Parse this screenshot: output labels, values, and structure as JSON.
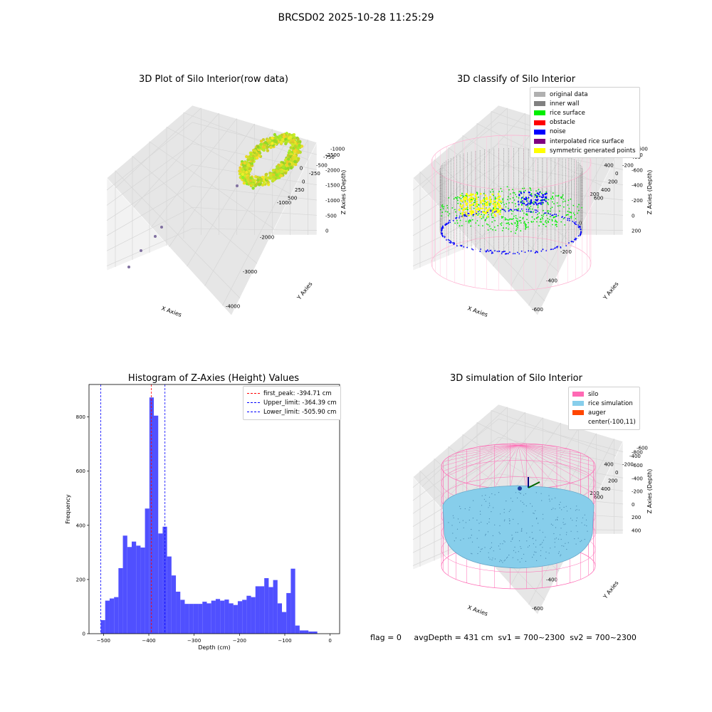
{
  "suptitle": "BRCSD02 2025-10-28 11:25:29",
  "status_text": "flag = 0     avgDepth = 431 cm  sv1 = 700~2300  sv2 = 700~2300",
  "colors": {
    "wall_gray": "#808080",
    "original_gray": "#b0b0b0",
    "rice_green": "#00ee00",
    "obstacle_red": "#ff0000",
    "noise_blue": "#0000ff",
    "interpolated_purple": "#800080",
    "symmetric_yellow": "#ffff00",
    "silo_pink": "#ff69b4",
    "rice_sim_blue": "#87ceeb",
    "auger_orange": "#ff4500",
    "hist_blue": "#5050ff"
  },
  "chart_data": [
    {
      "type": "scatter",
      "title": "3D Plot of Silo Interior(row data)",
      "xlabel": "X Axies",
      "ylabel": "Y Axies",
      "zlabel": "Z Axies (Depth)",
      "x_ticks": [
        "-4000",
        "-3000",
        "-2000",
        "-1000",
        "0"
      ],
      "y_ticks": [
        "-1000",
        "-750",
        "-500",
        "-250",
        "0",
        "250",
        "500"
      ],
      "z_ticks": [
        "0",
        "-500",
        "-1000",
        "-1500",
        "-2000",
        "-2500"
      ],
      "colormap": "green-to-yellow by depth"
    },
    {
      "type": "scatter",
      "title": "3D classify of Silo Interior",
      "xlabel": "X Axies",
      "ylabel": "Y Axies",
      "zlabel": "Z Axies (Depth)",
      "x_ticks": [
        "-600",
        "-400",
        "-200",
        "0",
        "200",
        "400"
      ],
      "y_ticks": [
        "-600",
        "-400",
        "-200",
        "0",
        "200",
        "400",
        "600"
      ],
      "z_ticks": [
        "200",
        "0",
        "-200",
        "-400",
        "-600",
        "-800"
      ],
      "legend": [
        {
          "label": "original data",
          "color": "#b0b0b0"
        },
        {
          "label": "inner wall",
          "color": "#808080"
        },
        {
          "label": "rice surface",
          "color": "#00ee00"
        },
        {
          "label": "obstacle",
          "color": "#ff0000"
        },
        {
          "label": "noise",
          "color": "#0000ff"
        },
        {
          "label": "interpolated rice surface",
          "color": "#800080"
        },
        {
          "label": "symmetric generated points",
          "color": "#ffff00"
        }
      ],
      "legend_position": "top-right"
    },
    {
      "type": "bar",
      "title": "Histogram of Z-Axies (Height) Values",
      "xlabel": "Depth (cm)",
      "ylabel": "Frequency",
      "xlim": [
        -532,
        21
      ],
      "ylim": [
        0,
        920
      ],
      "x_ticks": [
        -500,
        -400,
        -300,
        -200,
        -100,
        0
      ],
      "y_ticks": [
        0,
        200,
        400,
        600,
        800
      ],
      "bin_start": -506,
      "bin_width": 9.75,
      "values": [
        50,
        122,
        130,
        135,
        242,
        362,
        320,
        340,
        325,
        318,
        462,
        872,
        805,
        370,
        395,
        285,
        215,
        155,
        125,
        110,
        110,
        110,
        110,
        118,
        112,
        122,
        128,
        122,
        126,
        112,
        106,
        120,
        125,
        140,
        135,
        175,
        175,
        205,
        172,
        198,
        112,
        80,
        150,
        240,
        30,
        12,
        12,
        8,
        8
      ],
      "vlines": [
        {
          "label": "first_peak: -394.71 cm",
          "x": -394.71,
          "color": "#ff0000"
        },
        {
          "label": "Upper_limit: -364.39 cm",
          "x": -364.39,
          "color": "#0000ff"
        },
        {
          "label": "Lower_limit: -505.90 cm",
          "x": -505.9,
          "color": "#0000ff"
        }
      ],
      "legend_position": "top-right"
    },
    {
      "type": "scatter",
      "title": "3D simulation of Silo Interior",
      "xlabel": "X Axies",
      "ylabel": "Y Axies",
      "zlabel": "Z Axies (Depth)",
      "x_ticks": [
        "-600",
        "-400",
        "-200",
        "0",
        "200",
        "400"
      ],
      "y_ticks": [
        "-600",
        "-400",
        "-200",
        "0",
        "200",
        "400",
        "600"
      ],
      "z_ticks": [
        "400",
        "200",
        "0",
        "-200",
        "-400",
        "-600",
        "-800"
      ],
      "legend": [
        {
          "label": "silo",
          "color": "#ff69b4"
        },
        {
          "label": "rice simulation",
          "color": "#87ceeb"
        },
        {
          "label": "auger",
          "color": "#ff4500"
        },
        {
          "label": "center(-100,11)",
          "color": ""
        }
      ],
      "legend_position": "top-right"
    }
  ]
}
